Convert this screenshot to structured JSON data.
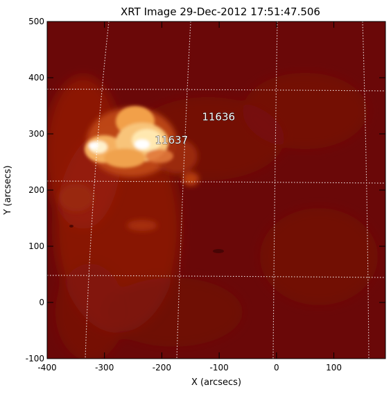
{
  "title": "XRT Image 29-Dec-2012 17:51:47.506",
  "xlabel": "X (arcsecs)",
  "ylabel": "Y (arcsecs)",
  "xlim": [
    -400,
    190
  ],
  "ylim": [
    -100,
    500
  ],
  "x_ticks": [
    -400,
    -300,
    -200,
    -100,
    0,
    100
  ],
  "y_ticks": [
    -100,
    0,
    100,
    200,
    300,
    400,
    500
  ],
  "annotations": [
    {
      "text": "11636",
      "x": -130,
      "y": 324
    },
    {
      "text": "11637",
      "x": -212,
      "y": 283
    }
  ],
  "colors": {
    "background": "#6a0808",
    "glow": "#a82a0c",
    "bright": "#ffe8b0",
    "core": "#ffffff",
    "grid": "#ffffff"
  }
}
